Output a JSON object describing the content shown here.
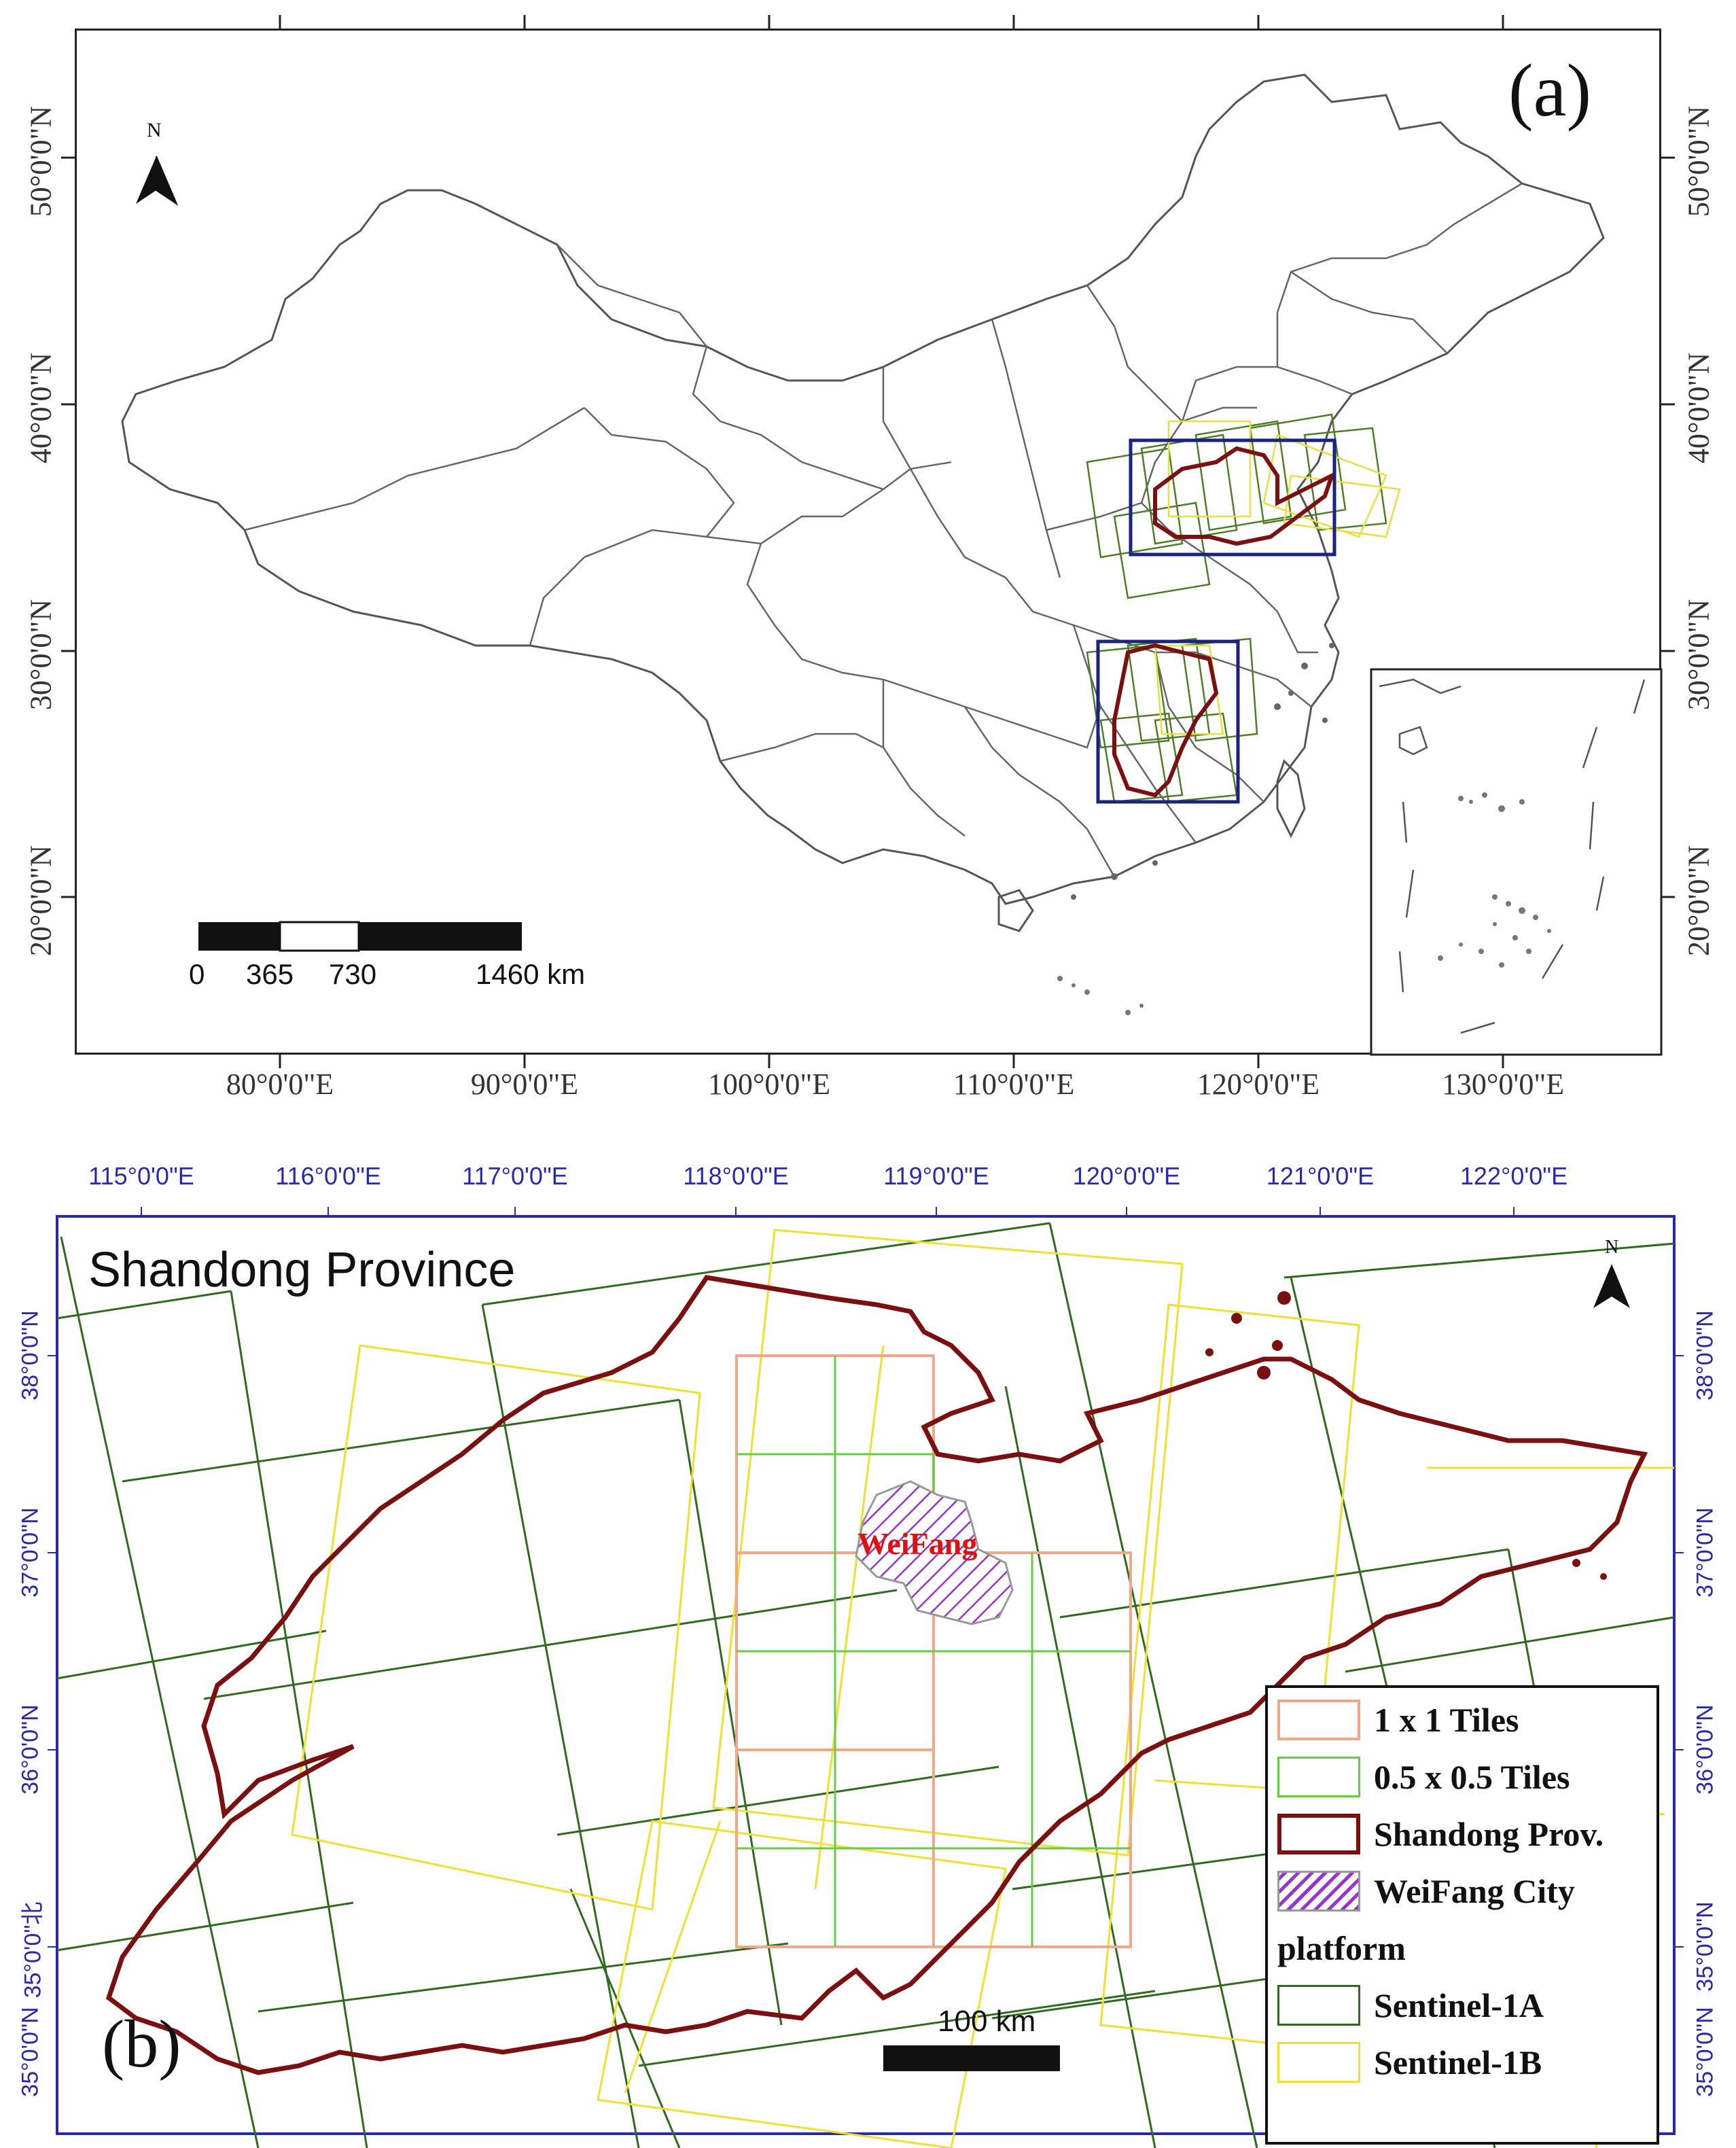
{
  "panel_a": {
    "label": "(a)",
    "north": "N",
    "lat_ticks": [
      "50°0'0\"N",
      "40°0'0\"N",
      "30°0'0\"N",
      "20°0'0\"N"
    ],
    "lon_ticks": [
      "80°0'0\"E",
      "90°0'0\"E",
      "100°0'0\"E",
      "110°0'0\"E",
      "120°0'0\"E",
      "130°0'0\"E"
    ],
    "scale_labels": [
      "0",
      "365",
      "730",
      "1460 km"
    ]
  },
  "panel_b": {
    "label": "(b)",
    "title": "Shandong Province",
    "north": "N",
    "city_label": "WeiFang",
    "lon_ticks": [
      "115°0'0\"E",
      "116°0'0\"E",
      "117°0'0\"E",
      "118°0'0\"E",
      "119°0'0\"E",
      "120°0'0\"E",
      "121°0'0\"E",
      "122°0'0\"E"
    ],
    "lat_ticks_left": [
      "38°0'0\"N",
      "37°0'0\"N",
      "36°0'0\"N",
      "35°0'0\"北",
      "35°0'0\"N"
    ],
    "lat_ticks_right": [
      "38°0'0\"N",
      "37°0'0\"N",
      "36°0'0\"N",
      "35°0'0\"N",
      "35°0'0\"N"
    ],
    "scale_label": "100 km",
    "legend": {
      "items": [
        {
          "label": "1 x 1 Tiles",
          "color": "#f0a888"
        },
        {
          "label": "0.5 x 0.5 Tiles",
          "color": "#66cc44"
        },
        {
          "label": "Shandong Prov.",
          "color": "#7a1010"
        },
        {
          "label": "WeiFang  City",
          "color": "#9933cc"
        }
      ],
      "group_title": "platform",
      "platforms": [
        {
          "label": "Sentinel-1A",
          "color": "#2e6b1e"
        },
        {
          "label": "Sentinel-1B",
          "color": "#f0e030"
        }
      ]
    }
  }
}
